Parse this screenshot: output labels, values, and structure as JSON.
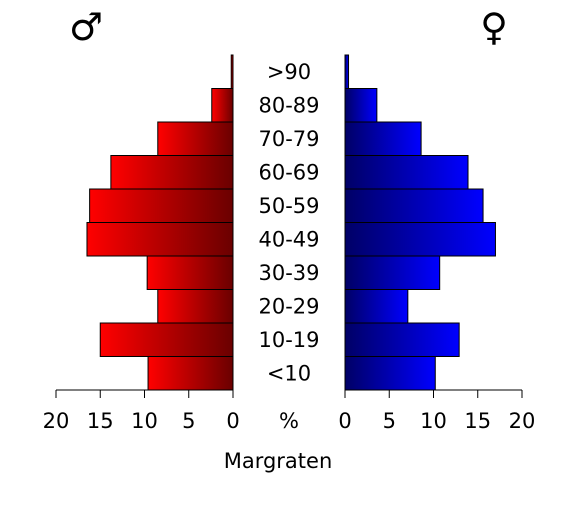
{
  "chart_data": {
    "type": "bar",
    "orientation": "horizontal-pyramid",
    "categories": [
      "<10",
      "10-19",
      "20-29",
      "30-39",
      "40-49",
      "50-59",
      "60-69",
      "70-79",
      "80-89",
      ">90"
    ],
    "series": [
      {
        "name": "♂",
        "side": "left",
        "color_dark": "#6a0000",
        "color_light": "#ff0000",
        "values": [
          9.6,
          15.0,
          8.5,
          9.7,
          16.5,
          16.2,
          13.8,
          8.5,
          2.4,
          0.2
        ]
      },
      {
        "name": "♀",
        "side": "right",
        "color_dark": "#000066",
        "color_light": "#0000ff",
        "values": [
          10.2,
          12.9,
          7.1,
          10.7,
          17.0,
          15.6,
          13.9,
          8.6,
          3.6,
          0.4
        ]
      }
    ],
    "xlim": [
      0,
      20
    ],
    "ticks": [
      "20",
      "15",
      "10",
      "5",
      "0"
    ],
    "ticks_right": [
      "0",
      "5",
      "10",
      "15",
      "20"
    ],
    "unit_label": "%",
    "caption": "Margraten",
    "male_symbol": "♂",
    "female_symbol": "♀"
  }
}
